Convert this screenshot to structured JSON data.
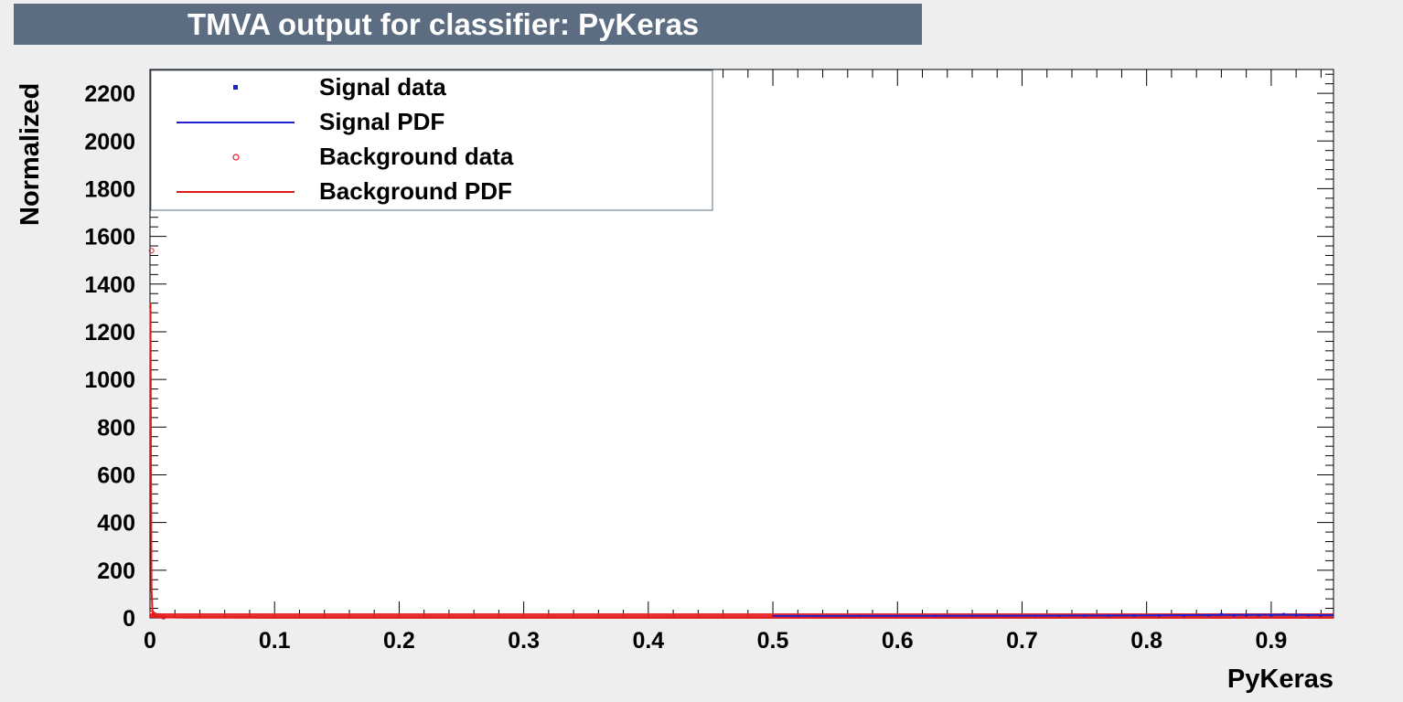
{
  "title": "TMVA output for classifier: PyKeras",
  "colors": {
    "title_background": "#5c6c81",
    "signal": "#1f1fd0",
    "background": "#e31a1a",
    "frame_background": "#ffffff",
    "canvas": "#eeeef0"
  },
  "chart_data": {
    "type": "line",
    "title": "TMVA output for classifier: PyKeras",
    "xlabel": "PyKeras",
    "ylabel": "Normalized",
    "xlim": [
      0,
      0.95
    ],
    "ylim": [
      0,
      2300
    ],
    "x_ticks": [
      0,
      0.1,
      0.2,
      0.3,
      0.4,
      0.5,
      0.6,
      0.7,
      0.8,
      0.9
    ],
    "x_tick_labels": [
      "0",
      "0.1",
      "0.2",
      "0.3",
      "0.4",
      "0.5",
      "0.6",
      "0.7",
      "0.8",
      "0.9"
    ],
    "y_ticks": [
      0,
      200,
      400,
      600,
      800,
      1000,
      1200,
      1400,
      1600,
      1800,
      2000,
      2200
    ],
    "y_tick_labels": [
      "0",
      "200",
      "400",
      "600",
      "800",
      "1000",
      "1200",
      "1400",
      "1600",
      "1800",
      "2000",
      "2200"
    ],
    "legend_position": "top-left",
    "legend": [
      {
        "label": "Signal data",
        "style": "marker-square",
        "color": "#1f1fd0"
      },
      {
        "label": "Signal PDF",
        "style": "line",
        "color": "#1f1fd0"
      },
      {
        "label": "Background data",
        "style": "marker-circle",
        "color": "#e31a1a"
      },
      {
        "label": "Background PDF",
        "style": "line",
        "color": "#e31a1a"
      }
    ],
    "series": [
      {
        "kind": "signal-data",
        "x": [
          0.52,
          0.57,
          0.6,
          0.63,
          0.66,
          0.69,
          0.71,
          0.73,
          0.75,
          0.77,
          0.79,
          0.81,
          0.83,
          0.85,
          0.86,
          0.87,
          0.88,
          0.89,
          0.9,
          0.91,
          0.92,
          0.93,
          0.94
        ],
        "y": [
          0.8,
          0.9,
          1.0,
          1.2,
          1.2,
          1.5,
          1.8,
          2.0,
          2.5,
          2.5,
          3.0,
          3.5,
          4.0,
          5.0,
          9.0,
          4.5,
          5.0,
          5.5,
          4.0,
          9.0,
          6.0,
          5.0,
          3.0
        ]
      },
      {
        "kind": "background-data",
        "x": [
          0.0005,
          0.001,
          0.003,
          0.006,
          0.01
        ],
        "y": [
          1540,
          20,
          12,
          8,
          5
        ]
      },
      {
        "kind": "background-pdf",
        "x": [
          0.0,
          0.0004,
          0.0007,
          0.0012,
          0.002,
          0.004,
          0.008,
          0.015,
          0.03,
          0.1,
          0.3,
          0.5,
          0.7,
          0.9,
          0.95
        ],
        "y": [
          1300,
          1320,
          750,
          120,
          25,
          8,
          4,
          2,
          1,
          0.5,
          0.3,
          0.3,
          0.3,
          0.3,
          0.3
        ]
      },
      {
        "kind": "signal-pdf",
        "x": [
          0.5,
          0.6,
          0.7,
          0.8,
          0.85,
          0.9,
          0.95
        ],
        "y": [
          0.5,
          1.0,
          1.5,
          3.0,
          4.5,
          5.5,
          4.0
        ]
      }
    ]
  }
}
